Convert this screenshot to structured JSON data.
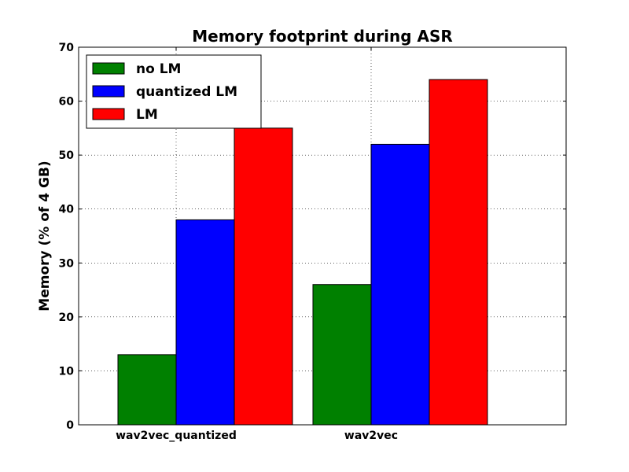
{
  "chart_data": {
    "type": "bar",
    "title": "Memory footprint during ASR",
    "xlabel": "",
    "ylabel": "Memory (% of 4 GB)",
    "categories": [
      "wav2vec_quantized",
      "wav2vec"
    ],
    "series": [
      {
        "name": "no LM",
        "color": "#008000",
        "values": [
          13,
          26
        ]
      },
      {
        "name": "quantized LM",
        "color": "#0000ff",
        "values": [
          38,
          52
        ]
      },
      {
        "name": "LM",
        "color": "#ff0000",
        "values": [
          55,
          64
        ]
      }
    ],
    "ylim": [
      0,
      70
    ],
    "yticks": [
      0,
      10,
      20,
      30,
      40,
      50,
      60,
      70
    ],
    "grid": true,
    "legend": "upper-left"
  }
}
